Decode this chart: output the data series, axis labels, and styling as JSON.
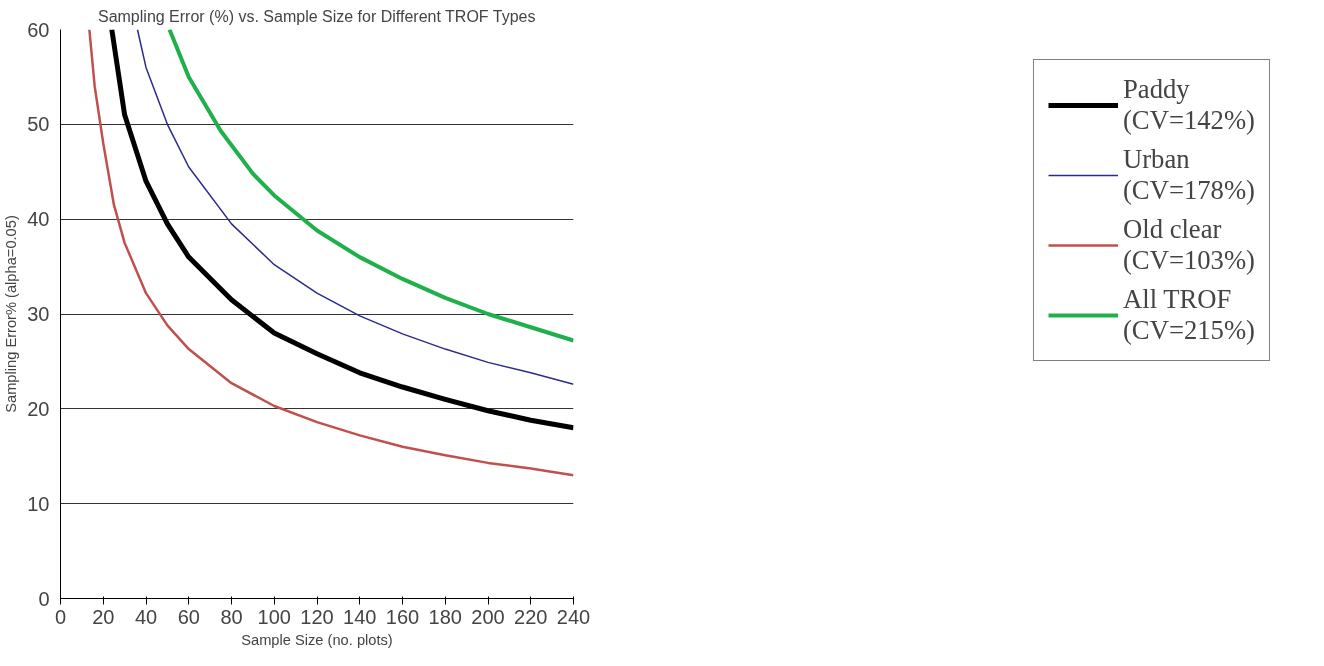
{
  "chart_data": {
    "type": "line",
    "title": "Sampling Error (%) vs. Sample Size for Different TROF Types",
    "xlabel": "Sample Size (no. plots)",
    "ylabel": "Sampling Error% (alpha=0.05)",
    "xlim": [
      0,
      240
    ],
    "xticks": [
      0,
      20,
      40,
      60,
      80,
      100,
      120,
      140,
      160,
      180,
      200,
      220,
      240
    ],
    "ylim": [
      0,
      60
    ],
    "yticks": [
      0,
      10,
      20,
      30,
      40,
      50,
      60
    ],
    "grid": "y",
    "legend": "right",
    "marker": "none",
    "line_style": "solid",
    "series": [
      {
        "name": "Paddy (CV=142%)",
        "color": "#000000",
        "x": [
          24,
          30,
          40,
          50,
          60,
          80,
          100,
          120,
          140,
          160,
          180,
          200,
          220,
          240
        ],
        "values": [
          60,
          51,
          44,
          39.5,
          36,
          31.5,
          28,
          25.8,
          23.8,
          22.3,
          21,
          19.8,
          18.8,
          18
        ]
      },
      {
        "name": "Urban (CV=178%)",
        "color": "#2b2b8c",
        "x": [
          36,
          40,
          50,
          60,
          80,
          100,
          120,
          140,
          160,
          180,
          200,
          220,
          240
        ],
        "values": [
          60,
          56,
          50,
          45.5,
          39.5,
          35.2,
          32.2,
          29.8,
          27.9,
          26.3,
          24.9,
          23.8,
          22.6
        ]
      },
      {
        "name": "Old clear (CV=103%)",
        "color": "#c0504d",
        "x": [
          13.5,
          16,
          20,
          25,
          30,
          40,
          50,
          60,
          80,
          100,
          120,
          140,
          160,
          180,
          200,
          220,
          240
        ],
        "values": [
          60,
          54,
          48,
          41.5,
          37.5,
          32.2,
          28.8,
          26.3,
          22.7,
          20.3,
          18.6,
          17.2,
          16,
          15.1,
          14.3,
          13.7,
          13
        ]
      },
      {
        "name": "All TROF (CV=215%)",
        "color": "#1fb04c",
        "x": [
          51,
          60,
          75,
          90,
          100,
          120,
          140,
          160,
          180,
          200,
          220,
          240
        ],
        "values": [
          60,
          55,
          49.3,
          44.8,
          42.5,
          38.8,
          36,
          33.7,
          31.7,
          30,
          28.6,
          27.2
        ]
      }
    ]
  }
}
